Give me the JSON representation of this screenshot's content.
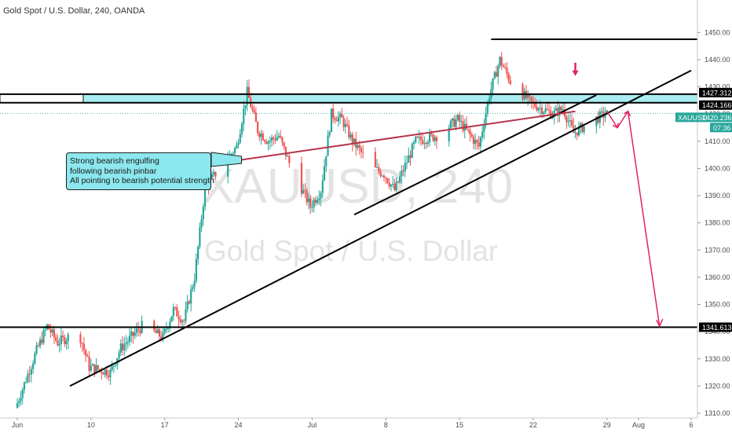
{
  "header": {
    "title": "Gold Spot / U.S. Dollar, 240, OANDA"
  },
  "watermark": {
    "symbol": "XAUUSD, 240",
    "description": "Gold Spot / U.S. Dollar"
  },
  "annotation": {
    "lines": [
      "Strong bearish engulfing",
      "following bearish pinbar",
      "All pointing to bearish potential strength"
    ]
  },
  "price_tags": {
    "resistance_top": "1427.312",
    "resistance_bottom": "1424.166",
    "symbol": "XAUUSD",
    "current": "1420.236",
    "countdown": "07:36",
    "support": "1341.613"
  },
  "colors": {
    "bull": "#26a69a",
    "bear": "#ef5350",
    "zone": "#8ce7ee",
    "trend": "#000000",
    "projection": "#e0245e",
    "current_tag": "#26a69a"
  },
  "chart_data": {
    "type": "candlestick",
    "symbol": "XAUUSD",
    "interval": "240",
    "y_axis": {
      "min": 1310,
      "max": 1455,
      "ticks": [
        1310,
        1320,
        1330,
        1340,
        1350,
        1360,
        1370,
        1380,
        1390,
        1400,
        1410,
        1420,
        1430,
        1440,
        1450
      ]
    },
    "x_axis": {
      "labels": [
        {
          "label": "Jun",
          "date": "2019-06-03"
        },
        {
          "label": "10",
          "date": "2019-06-10"
        },
        {
          "label": "17",
          "date": "2019-06-17"
        },
        {
          "label": "24",
          "date": "2019-06-24"
        },
        {
          "label": "Jul",
          "date": "2019-07-01"
        },
        {
          "label": "8",
          "date": "2019-07-08"
        },
        {
          "label": "15",
          "date": "2019-07-15"
        },
        {
          "label": "22",
          "date": "2019-07-22"
        },
        {
          "label": "29",
          "date": "2019-07-29"
        },
        {
          "label": "Aug",
          "date": "2019-08-01"
        },
        {
          "label": "6",
          "date": "2019-08-06"
        }
      ]
    },
    "price_path": [
      {
        "date": "2019-06-03",
        "price": 1312
      },
      {
        "date": "2019-06-05",
        "price": 1333
      },
      {
        "date": "2019-06-06",
        "price": 1342
      },
      {
        "date": "2019-06-07",
        "price": 1336
      },
      {
        "date": "2019-06-09",
        "price": 1340
      },
      {
        "date": "2019-06-10",
        "price": 1327
      },
      {
        "date": "2019-06-12",
        "price": 1325
      },
      {
        "date": "2019-06-13",
        "price": 1334
      },
      {
        "date": "2019-06-15",
        "price": 1342
      },
      {
        "date": "2019-06-17",
        "price": 1338
      },
      {
        "date": "2019-06-18",
        "price": 1348
      },
      {
        "date": "2019-06-19",
        "price": 1344
      },
      {
        "date": "2019-06-20",
        "price": 1360
      },
      {
        "date": "2019-06-21",
        "price": 1393
      },
      {
        "date": "2019-06-22",
        "price": 1398
      },
      {
        "date": "2019-06-24",
        "price": 1408
      },
      {
        "date": "2019-06-25",
        "price": 1428
      },
      {
        "date": "2019-06-26",
        "price": 1414
      },
      {
        "date": "2019-06-27",
        "price": 1410
      },
      {
        "date": "2019-06-28",
        "price": 1412
      },
      {
        "date": "2019-06-29",
        "price": 1402
      },
      {
        "date": "2019-07-01",
        "price": 1386
      },
      {
        "date": "2019-07-02",
        "price": 1392
      },
      {
        "date": "2019-07-03",
        "price": 1420
      },
      {
        "date": "2019-07-04",
        "price": 1418
      },
      {
        "date": "2019-07-05",
        "price": 1410
      },
      {
        "date": "2019-07-07",
        "price": 1400
      },
      {
        "date": "2019-07-08",
        "price": 1398
      },
      {
        "date": "2019-07-09",
        "price": 1392
      },
      {
        "date": "2019-07-11",
        "price": 1410
      },
      {
        "date": "2019-07-13",
        "price": 1412
      },
      {
        "date": "2019-07-15",
        "price": 1418
      },
      {
        "date": "2019-07-17",
        "price": 1408
      },
      {
        "date": "2019-07-18",
        "price": 1427
      },
      {
        "date": "2019-07-19",
        "price": 1440
      },
      {
        "date": "2019-07-20",
        "price": 1432
      },
      {
        "date": "2019-07-22",
        "price": 1424
      },
      {
        "date": "2019-07-24",
        "price": 1420
      },
      {
        "date": "2019-07-25",
        "price": 1422
      },
      {
        "date": "2019-07-26",
        "price": 1413
      },
      {
        "date": "2019-07-28",
        "price": 1418
      },
      {
        "date": "2019-07-29",
        "price": 1420
      }
    ],
    "levels": [
      {
        "name": "resistance_top",
        "price": 1427.312
      },
      {
        "name": "resistance_bottom",
        "price": 1424.166
      },
      {
        "name": "support",
        "price": 1341.613
      },
      {
        "name": "swing_high",
        "price": 1447.5
      }
    ],
    "resistance_zone": {
      "from": 1424.166,
      "to": 1427.312
    },
    "current_price": 1420.236,
    "trendlines": [
      {
        "name": "lower_support",
        "from": {
          "date": "2019-06-08",
          "price": 1320
        },
        "to": {
          "date": "2019-08-06",
          "price": 1436
        }
      },
      {
        "name": "inner_support",
        "from": {
          "date": "2019-07-05",
          "price": 1383
        },
        "to": {
          "date": "2019-07-28",
          "price": 1427
        }
      },
      {
        "name": "rising_wedge_top",
        "from": {
          "date": "2019-06-24",
          "price": 1403
        },
        "to": {
          "date": "2019-07-26",
          "price": 1421
        }
      }
    ],
    "projection": [
      {
        "date": "2019-07-29",
        "price": 1421
      },
      {
        "date": "2019-07-30",
        "price": 1415
      },
      {
        "date": "2019-07-31",
        "price": 1421
      },
      {
        "date": "2019-08-03",
        "price": 1342
      }
    ],
    "signal_arrow": {
      "date": "2019-07-26",
      "price": 1436
    }
  }
}
